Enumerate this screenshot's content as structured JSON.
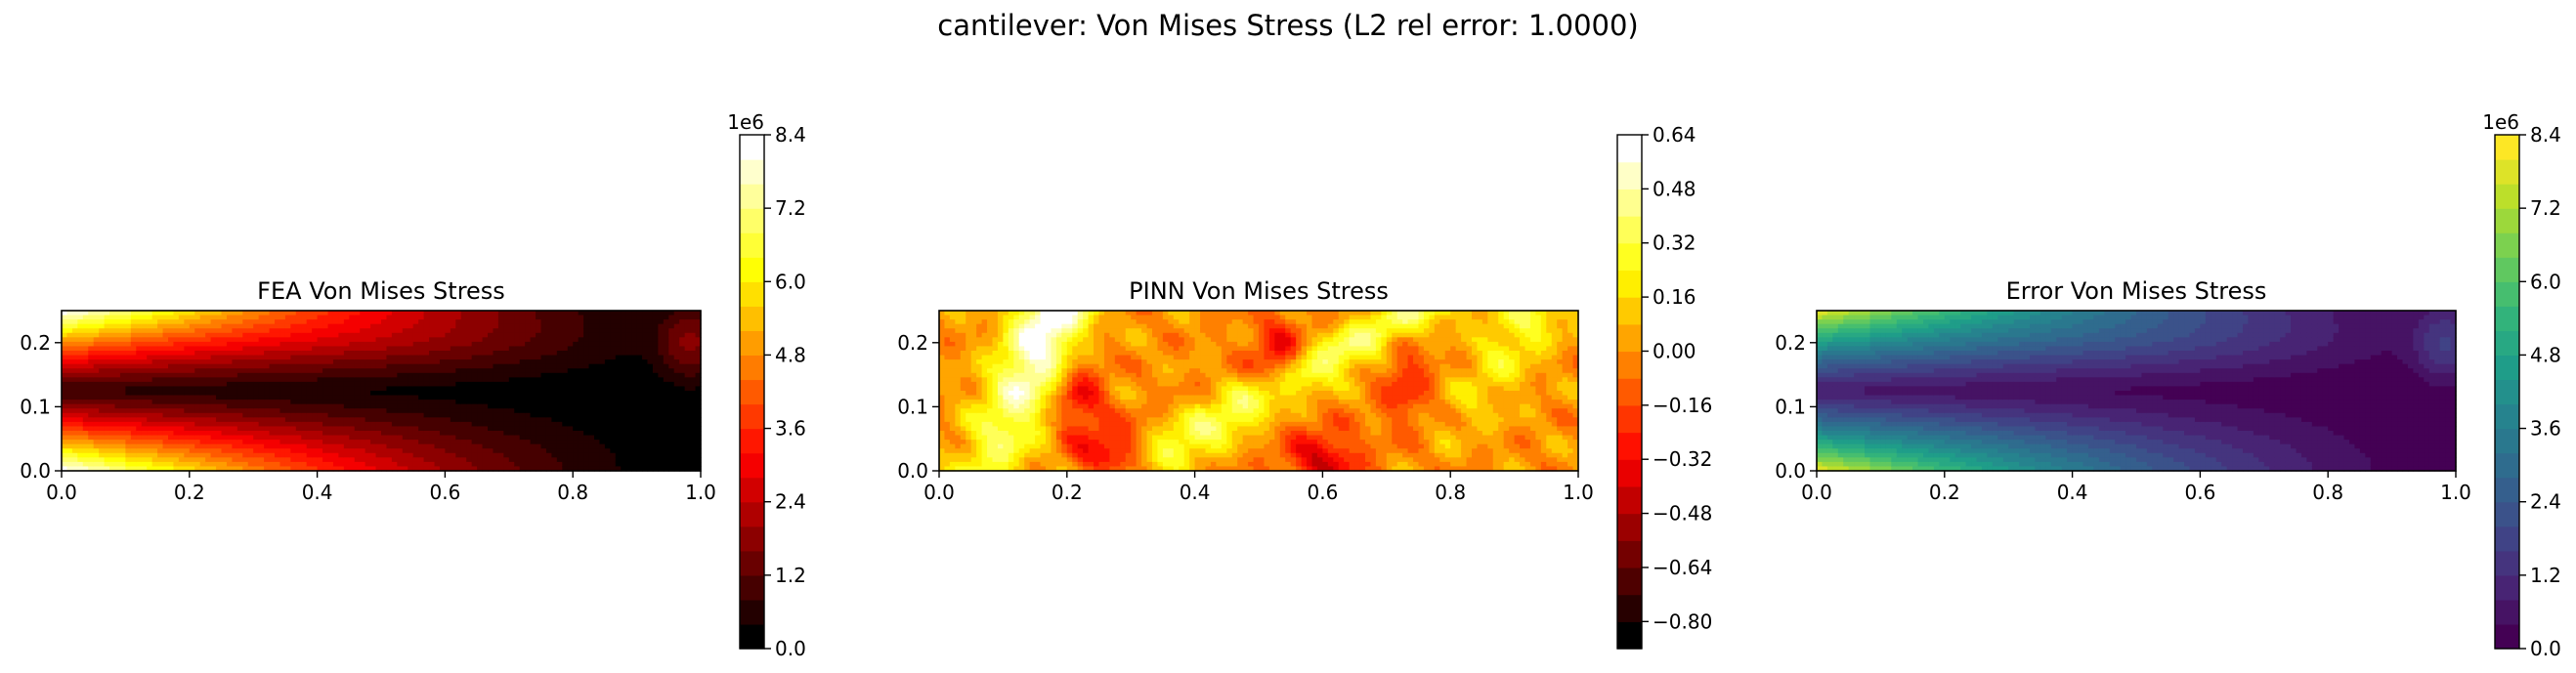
{
  "suptitle": "cantilever: Von Mises Stress (L2 rel error: 1.0000)",
  "chart_data": [
    {
      "type": "heatmap",
      "title": "FEA Von Mises Stress",
      "colormap": "hot",
      "xlim": [
        0,
        1.0
      ],
      "ylim": [
        0,
        0.25
      ],
      "x_ticks": [
        "0.0",
        "0.2",
        "0.4",
        "0.6",
        "0.8",
        "1.0"
      ],
      "y_ticks": [
        "0.0",
        "0.1",
        "0.2"
      ],
      "colorbar": {
        "range": [
          0,
          8.4
        ],
        "multiplier": "1e6",
        "ticks": [
          "0.0",
          "1.2",
          "2.4",
          "3.6",
          "4.8",
          "6.0",
          "7.2",
          "8.4"
        ],
        "levels": 21
      },
      "field": "bending stress: max (~8.4e6) at top and bottom edges near fixed end x=0, decaying linearly toward free end x=1; neutral axis near y=0.125; local concentration near x=0.95"
    },
    {
      "type": "heatmap",
      "title": "PINN Von Mises Stress",
      "colormap": "hot",
      "xlim": [
        0,
        1.0
      ],
      "ylim": [
        0,
        0.25
      ],
      "x_ticks": [
        "0.0",
        "0.2",
        "0.4",
        "0.6",
        "0.8",
        "1.0"
      ],
      "y_ticks": [
        "0.0",
        "0.1",
        "0.2"
      ],
      "colorbar": {
        "range": [
          -0.88,
          0.64
        ],
        "multiplier": "",
        "ticks": [
          "−0.80",
          "−0.64",
          "−0.48",
          "−0.32",
          "−0.16",
          "0.00",
          "0.16",
          "0.32",
          "0.48",
          "0.64"
        ],
        "levels": 19
      },
      "field": "noisy pattern with diagonal bright bands (~0.4 to 0.64) near x=0.05-0.15 and x=0.3-0.5, dark patches near bottom at x≈0.3 and x≈0.6"
    },
    {
      "type": "heatmap",
      "title": "Error Von Mises Stress",
      "colormap": "viridis",
      "xlim": [
        0,
        1.0
      ],
      "ylim": [
        0,
        0.25
      ],
      "x_ticks": [
        "0.0",
        "0.2",
        "0.4",
        "0.6",
        "0.8",
        "1.0"
      ],
      "y_ticks": [
        "0.0",
        "0.1",
        "0.2"
      ],
      "colorbar": {
        "range": [
          0,
          8.4
        ],
        "multiplier": "1e6",
        "ticks": [
          "0.0",
          "1.2",
          "2.4",
          "3.6",
          "4.8",
          "6.0",
          "7.2",
          "8.4"
        ],
        "levels": 21
      },
      "field": "absolute error, nearly identical to FEA field (max ~7.8e6 near x=0 edges)"
    }
  ]
}
